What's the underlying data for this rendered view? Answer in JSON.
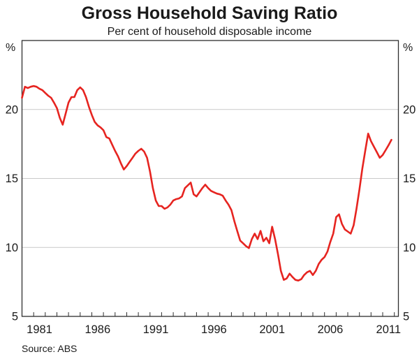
{
  "chart_data": {
    "type": "line",
    "title": "Gross Household Saving Ratio",
    "subtitle": "Per cent of household disposable income",
    "y_unit": "%",
    "source": "Source: ABS",
    "line_color": "#e62420",
    "grid_color": "#c9c9c9",
    "frame_color": "#2e2e2e",
    "legend": "none",
    "grid": "horizontal",
    "xlim": [
      1980,
      2012.35
    ],
    "ylim": [
      5,
      25
    ],
    "y_tick_labels": [
      5,
      10,
      15,
      20
    ],
    "gridlines_y": [
      10,
      15,
      20
    ],
    "x_tick_labels": [
      1981,
      1986,
      1991,
      1996,
      2001,
      2006,
      2011
    ],
    "minor_x_tick_interval_years": 1,
    "series": [
      {
        "name": "Gross household saving ratio",
        "points": [
          [
            1980.0,
            20.85
          ],
          [
            1980.25,
            21.65
          ],
          [
            1980.5,
            21.55
          ],
          [
            1980.75,
            21.65
          ],
          [
            1981.0,
            21.7
          ],
          [
            1981.25,
            21.65
          ],
          [
            1981.5,
            21.5
          ],
          [
            1981.75,
            21.4
          ],
          [
            1982.0,
            21.2
          ],
          [
            1982.25,
            21.0
          ],
          [
            1982.5,
            20.85
          ],
          [
            1982.75,
            20.5
          ],
          [
            1983.0,
            20.1
          ],
          [
            1983.25,
            19.4
          ],
          [
            1983.5,
            18.9
          ],
          [
            1983.75,
            19.7
          ],
          [
            1984.0,
            20.5
          ],
          [
            1984.25,
            20.9
          ],
          [
            1984.5,
            20.9
          ],
          [
            1984.75,
            21.4
          ],
          [
            1985.0,
            21.6
          ],
          [
            1985.25,
            21.4
          ],
          [
            1985.5,
            20.9
          ],
          [
            1985.75,
            20.2
          ],
          [
            1986.0,
            19.6
          ],
          [
            1986.25,
            19.1
          ],
          [
            1986.5,
            18.85
          ],
          [
            1986.75,
            18.7
          ],
          [
            1987.0,
            18.5
          ],
          [
            1987.25,
            18.0
          ],
          [
            1987.5,
            17.9
          ],
          [
            1987.75,
            17.45
          ],
          [
            1988.0,
            17.0
          ],
          [
            1988.25,
            16.6
          ],
          [
            1988.5,
            16.1
          ],
          [
            1988.75,
            15.65
          ],
          [
            1989.0,
            15.9
          ],
          [
            1989.25,
            16.2
          ],
          [
            1989.5,
            16.5
          ],
          [
            1989.75,
            16.8
          ],
          [
            1990.0,
            17.0
          ],
          [
            1990.25,
            17.15
          ],
          [
            1990.5,
            16.95
          ],
          [
            1990.75,
            16.5
          ],
          [
            1991.0,
            15.5
          ],
          [
            1991.25,
            14.3
          ],
          [
            1991.5,
            13.4
          ],
          [
            1991.75,
            13.0
          ],
          [
            1992.0,
            13.0
          ],
          [
            1992.25,
            12.8
          ],
          [
            1992.5,
            12.9
          ],
          [
            1992.75,
            13.1
          ],
          [
            1993.0,
            13.4
          ],
          [
            1993.25,
            13.5
          ],
          [
            1993.5,
            13.55
          ],
          [
            1993.75,
            13.7
          ],
          [
            1994.0,
            14.3
          ],
          [
            1994.25,
            14.5
          ],
          [
            1994.5,
            14.7
          ],
          [
            1994.75,
            13.85
          ],
          [
            1995.0,
            13.7
          ],
          [
            1995.25,
            14.0
          ],
          [
            1995.5,
            14.3
          ],
          [
            1995.75,
            14.55
          ],
          [
            1996.0,
            14.3
          ],
          [
            1996.25,
            14.1
          ],
          [
            1996.5,
            14.0
          ],
          [
            1996.75,
            13.9
          ],
          [
            1997.0,
            13.85
          ],
          [
            1997.25,
            13.75
          ],
          [
            1997.5,
            13.4
          ],
          [
            1997.75,
            13.1
          ],
          [
            1998.0,
            12.7
          ],
          [
            1998.25,
            11.9
          ],
          [
            1998.5,
            11.2
          ],
          [
            1998.75,
            10.5
          ],
          [
            1999.0,
            10.3
          ],
          [
            1999.25,
            10.1
          ],
          [
            1999.5,
            9.95
          ],
          [
            1999.75,
            10.6
          ],
          [
            2000.0,
            11.0
          ],
          [
            2000.25,
            10.6
          ],
          [
            2000.5,
            11.2
          ],
          [
            2000.75,
            10.45
          ],
          [
            2001.0,
            10.7
          ],
          [
            2001.25,
            10.3
          ],
          [
            2001.5,
            11.5
          ],
          [
            2001.75,
            10.6
          ],
          [
            2002.0,
            9.5
          ],
          [
            2002.25,
            8.3
          ],
          [
            2002.5,
            7.65
          ],
          [
            2002.75,
            7.75
          ],
          [
            2003.0,
            8.1
          ],
          [
            2003.25,
            7.85
          ],
          [
            2003.5,
            7.65
          ],
          [
            2003.75,
            7.6
          ],
          [
            2004.0,
            7.7
          ],
          [
            2004.25,
            8.0
          ],
          [
            2004.5,
            8.2
          ],
          [
            2004.75,
            8.3
          ],
          [
            2005.0,
            8.0
          ],
          [
            2005.25,
            8.3
          ],
          [
            2005.5,
            8.8
          ],
          [
            2005.75,
            9.1
          ],
          [
            2006.0,
            9.3
          ],
          [
            2006.25,
            9.7
          ],
          [
            2006.5,
            10.4
          ],
          [
            2006.75,
            11.0
          ],
          [
            2007.0,
            12.2
          ],
          [
            2007.25,
            12.4
          ],
          [
            2007.5,
            11.7
          ],
          [
            2007.75,
            11.3
          ],
          [
            2008.0,
            11.15
          ],
          [
            2008.25,
            11.0
          ],
          [
            2008.5,
            11.6
          ],
          [
            2008.75,
            12.8
          ],
          [
            2009.0,
            14.2
          ],
          [
            2009.25,
            15.7
          ],
          [
            2009.5,
            17.0
          ],
          [
            2009.75,
            18.25
          ],
          [
            2010.0,
            17.7
          ],
          [
            2010.25,
            17.3
          ],
          [
            2010.5,
            16.9
          ],
          [
            2010.75,
            16.5
          ],
          [
            2011.0,
            16.7
          ],
          [
            2011.25,
            17.05
          ],
          [
            2011.5,
            17.4
          ],
          [
            2011.75,
            17.8
          ]
        ]
      }
    ]
  }
}
